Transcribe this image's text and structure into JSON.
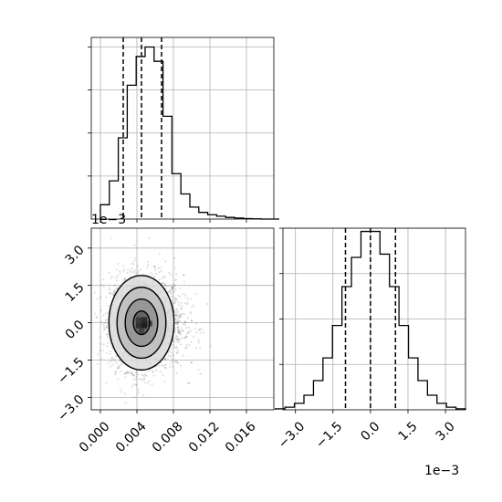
{
  "chart_data": {
    "type": "corner",
    "grid": true,
    "param1": {
      "hist_edges": [
        0.0,
        0.00098,
        0.00196,
        0.00294,
        0.00392,
        0.0049,
        0.00588,
        0.00686,
        0.00784,
        0.00882,
        0.0098,
        0.01078,
        0.01176,
        0.01274,
        0.01372,
        0.0147,
        0.01568,
        0.01666,
        0.01764,
        0.01862,
        0.0196
      ],
      "hist_counts": [
        0.6,
        1.6,
        3.4,
        5.6,
        6.8,
        7.2,
        6.6,
        4.3,
        1.9,
        1.05,
        0.5,
        0.28,
        0.18,
        0.12,
        0.07,
        0.04,
        0.02,
        0.01,
        0.0,
        0.0
      ],
      "quantiles": [
        0.0025,
        0.0045,
        0.0067
      ],
      "xlim": [
        -0.001,
        0.019
      ],
      "ylim": [
        0,
        7.6
      ],
      "x_ticks": [
        0.0,
        0.004,
        0.008,
        0.012,
        0.016
      ],
      "x_tick_labels": [
        "0.000",
        "0.004",
        "0.008",
        "0.012",
        "0.016"
      ]
    },
    "param2": {
      "hist_edges": [
        -0.0038,
        -0.00342,
        -0.00304,
        -0.00266,
        -0.00228,
        -0.0019,
        -0.00152,
        -0.00114,
        -0.00076,
        -0.00038,
        0.0,
        0.00038,
        0.00076,
        0.00114,
        0.00152,
        0.0019,
        0.00228,
        0.00266,
        0.00304,
        0.00342,
        0.0038
      ],
      "hist_counts": [
        0.03,
        0.08,
        0.2,
        0.45,
        0.9,
        1.6,
        2.6,
        3.8,
        4.7,
        5.5,
        5.5,
        4.8,
        3.8,
        2.6,
        1.6,
        0.9,
        0.45,
        0.2,
        0.08,
        0.03
      ],
      "quantiles": [
        -0.001,
        0.0,
        0.001
      ],
      "xlim": [
        -0.0035,
        0.0038
      ],
      "ylim": [
        0,
        5.6
      ],
      "x_ticks": [
        -0.003,
        -0.0015,
        0.0,
        0.0015,
        0.003
      ],
      "x_tick_labels": [
        "−3.0",
        "−1.5",
        "0.0",
        "1.5",
        "3.0"
      ],
      "exponent_label": "1e−3"
    },
    "joint": {
      "xlim": [
        -0.001,
        0.019
      ],
      "ylim": [
        -0.0035,
        0.0038
      ],
      "y_ticks": [
        -0.003,
        -0.0015,
        0.0,
        0.0015,
        0.003
      ],
      "y_tick_labels": [
        "−3.0",
        "−1.5",
        "0.0",
        "1.5",
        "3.0"
      ],
      "y_exponent_label": "1e−3",
      "center": [
        0.0045,
        0.0
      ],
      "spread": [
        0.0017,
        0.00095
      ],
      "contour_levels_sigma": [
        0.5,
        1.0,
        1.5,
        2.0
      ],
      "scatter_points": 2500
    }
  }
}
